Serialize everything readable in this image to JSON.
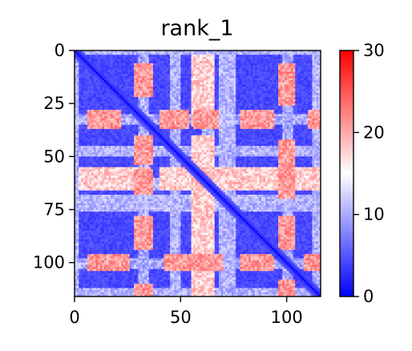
{
  "chart_data": {
    "type": "heatmap",
    "title": "rank_1",
    "xlabel": "",
    "ylabel": "",
    "size": 116,
    "xlim": [
      0,
      116
    ],
    "ylim": [
      116,
      0
    ],
    "x_ticks": [
      0,
      50,
      100
    ],
    "y_ticks": [
      0,
      25,
      50,
      75,
      100
    ],
    "colorbar": {
      "colormap": "bwr",
      "vmin": 0,
      "vmax": 30,
      "ticks": [
        0,
        10,
        20,
        30
      ],
      "colors": {
        "low": "#0000ff",
        "mid": "#ffffff",
        "high": "#ff0000"
      }
    },
    "high_value_bands": [
      {
        "rows": [
          28,
          37
        ],
        "value": 24,
        "hot_column_spans": [
          [
            6,
            22
          ],
          [
            40,
            54
          ],
          [
            56,
            68
          ],
          [
            78,
            94
          ],
          [
            110,
            116
          ]
        ]
      },
      {
        "rows": [
          55,
          66
        ],
        "value": 21,
        "hot_column_spans": [
          [
            2,
            36
          ],
          [
            40,
            116
          ]
        ]
      },
      {
        "rows": [
          96,
          104
        ],
        "value": 24,
        "hot_column_spans": [
          [
            6,
            26
          ],
          [
            42,
            70
          ],
          [
            78,
            94
          ],
          [
            108,
            116
          ]
        ]
      }
    ],
    "moderate_rows": [
      [
        0,
        2
      ],
      [
        45,
        50
      ],
      [
        68,
        76
      ],
      [
        112,
        116
      ]
    ],
    "moderate_columns": [
      [
        30,
        35
      ],
      [
        60,
        66
      ],
      [
        98,
        103
      ]
    ],
    "diagonal_value": 0,
    "background_value": 3
  }
}
